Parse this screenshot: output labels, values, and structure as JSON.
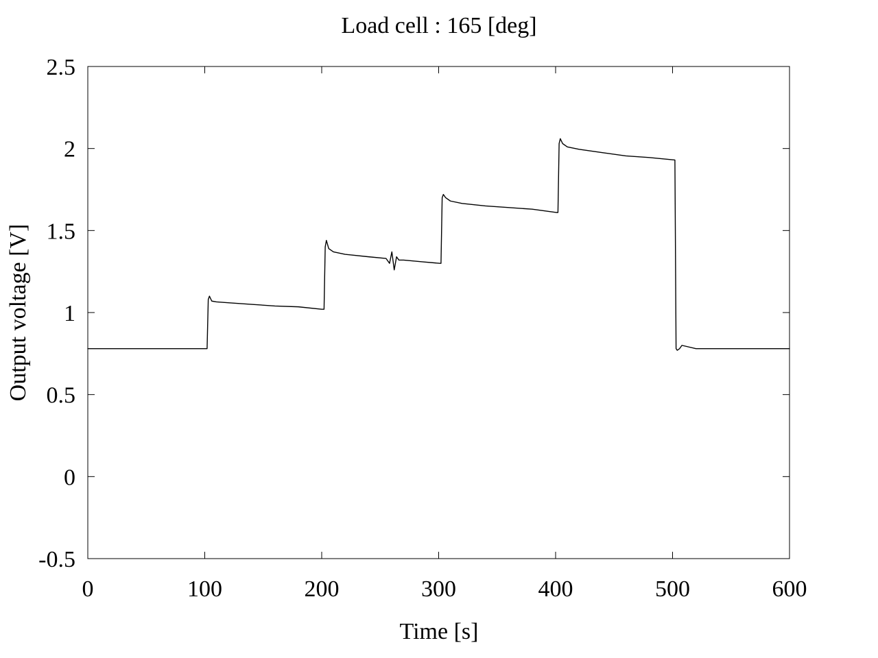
{
  "chart_data": {
    "type": "line",
    "title": "Load cell : 165 [deg]",
    "xlabel": "Time [s]",
    "ylabel": "Output voltage [V]",
    "xlim": [
      0,
      600
    ],
    "ylim": [
      -0.5,
      2.5
    ],
    "xticks": [
      {
        "value": 0,
        "label": "0"
      },
      {
        "value": 100,
        "label": "100"
      },
      {
        "value": 200,
        "label": "200"
      },
      {
        "value": 300,
        "label": "300"
      },
      {
        "value": 400,
        "label": "400"
      },
      {
        "value": 500,
        "label": "500"
      },
      {
        "value": 600,
        "label": "600"
      }
    ],
    "yticks": [
      {
        "value": -0.5,
        "label": "-0.5"
      },
      {
        "value": 0,
        "label": "0"
      },
      {
        "value": 0.5,
        "label": "0.5"
      },
      {
        "value": 1,
        "label": "1"
      },
      {
        "value": 1.5,
        "label": "1.5"
      },
      {
        "value": 2,
        "label": "2"
      },
      {
        "value": 2.5,
        "label": "2.5"
      }
    ],
    "grid": false,
    "legend": "none",
    "line_color": "#000000",
    "series": [
      {
        "x": [
          0,
          25,
          50,
          75,
          102,
          103,
          104,
          106,
          110,
          120,
          140,
          160,
          180,
          200,
          202,
          203,
          204,
          206,
          210,
          220,
          240,
          255,
          258,
          260,
          262,
          264,
          266,
          270,
          285,
          301,
          302,
          303,
          304,
          306,
          310,
          320,
          340,
          360,
          380,
          401,
          402,
          403,
          404,
          406,
          410,
          420,
          440,
          460,
          480,
          502,
          503,
          504,
          506,
          508,
          520,
          560,
          600
        ],
        "y": [
          0.78,
          0.78,
          0.78,
          0.78,
          0.78,
          1.08,
          1.1,
          1.07,
          1.065,
          1.06,
          1.05,
          1.04,
          1.035,
          1.02,
          1.02,
          1.4,
          1.44,
          1.39,
          1.37,
          1.355,
          1.34,
          1.33,
          1.3,
          1.37,
          1.26,
          1.34,
          1.32,
          1.32,
          1.31,
          1.3,
          1.3,
          1.7,
          1.72,
          1.7,
          1.68,
          1.665,
          1.65,
          1.64,
          1.63,
          1.61,
          1.61,
          2.03,
          2.06,
          2.03,
          2.01,
          1.995,
          1.975,
          1.955,
          1.945,
          1.93,
          0.78,
          0.77,
          0.78,
          0.8,
          0.78,
          0.78,
          0.78
        ]
      }
    ]
  }
}
